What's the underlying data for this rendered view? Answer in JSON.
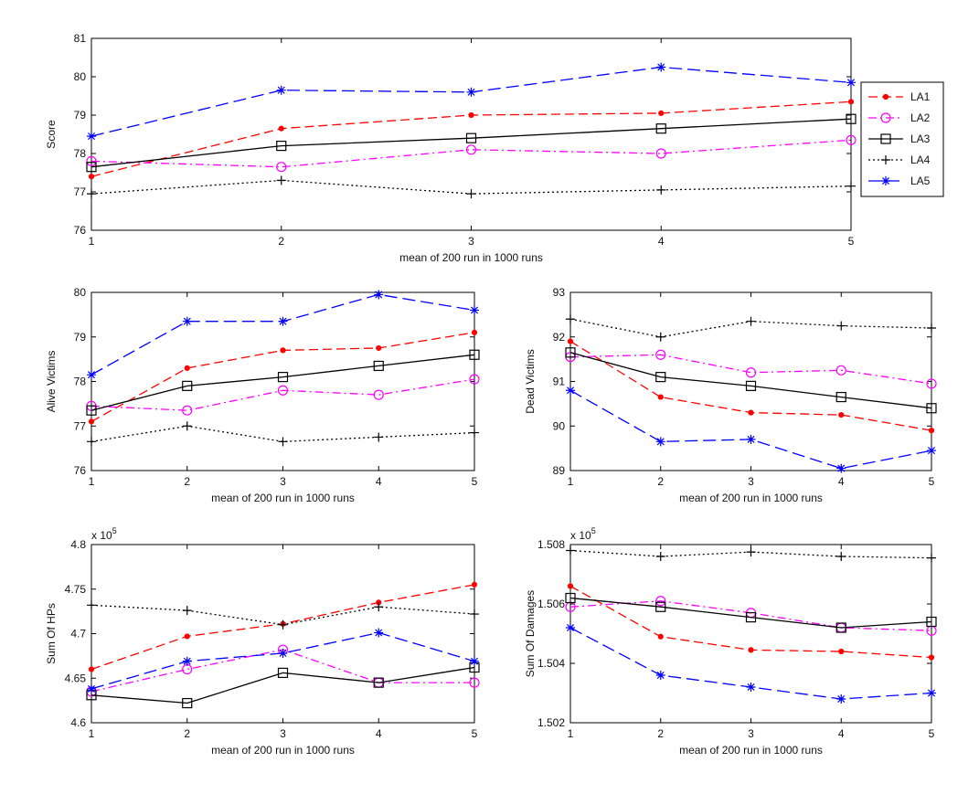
{
  "series_styles": [
    {
      "name": "LA1",
      "color": "#ff0000",
      "dash": "10,5",
      "marker": "dot"
    },
    {
      "name": "LA2",
      "color": "#ff00ff",
      "dash": "9,4,2,4",
      "marker": "circle"
    },
    {
      "name": "LA3",
      "color": "#000000",
      "dash": "",
      "marker": "square"
    },
    {
      "name": "LA4",
      "color": "#000000",
      "dash": "2,3",
      "marker": "plus"
    },
    {
      "name": "LA5",
      "color": "#0000ff",
      "dash": "14,6",
      "marker": "star"
    }
  ],
  "chart_data": [
    {
      "id": "score",
      "type": "line",
      "ylabel": "Score",
      "xlabel": "mean of 200 run in 1000 runs",
      "x": [
        1,
        2,
        3,
        4,
        5
      ],
      "xlim": [
        1,
        5
      ],
      "ylim": [
        76,
        81
      ],
      "xticks": [
        1,
        2,
        3,
        4,
        5
      ],
      "yticks": [
        76,
        77,
        78,
        79,
        80,
        81
      ],
      "ytick_labels": [
        "76",
        "77",
        "78",
        "79",
        "80",
        "81"
      ],
      "legend": "right-outside",
      "series": [
        {
          "name": "LA1",
          "values": [
            77.4,
            78.65,
            79.0,
            79.05,
            79.35
          ]
        },
        {
          "name": "LA2",
          "values": [
            77.8,
            77.65,
            78.1,
            78.0,
            78.35
          ]
        },
        {
          "name": "LA3",
          "values": [
            77.65,
            78.2,
            78.4,
            78.65,
            78.9
          ]
        },
        {
          "name": "LA4",
          "values": [
            76.95,
            77.3,
            76.95,
            77.05,
            77.15
          ]
        },
        {
          "name": "LA5",
          "values": [
            78.45,
            79.65,
            79.6,
            80.25,
            79.85
          ]
        }
      ]
    },
    {
      "id": "alive",
      "type": "line",
      "ylabel": "Alive Victims",
      "xlabel": "mean of 200 run in 1000 runs",
      "x": [
        1,
        2,
        3,
        4,
        5
      ],
      "xlim": [
        1,
        5
      ],
      "ylim": [
        76,
        80
      ],
      "xticks": [
        1,
        2,
        3,
        4,
        5
      ],
      "yticks": [
        76,
        77,
        78,
        79,
        80
      ],
      "ytick_labels": [
        "76",
        "77",
        "78",
        "79",
        "80"
      ],
      "series": [
        {
          "name": "LA1",
          "values": [
            77.1,
            78.3,
            78.7,
            78.75,
            79.1
          ]
        },
        {
          "name": "LA2",
          "values": [
            77.45,
            77.35,
            77.8,
            77.7,
            78.05
          ]
        },
        {
          "name": "LA3",
          "values": [
            77.35,
            77.9,
            78.1,
            78.35,
            78.6
          ]
        },
        {
          "name": "LA4",
          "values": [
            76.65,
            77.0,
            76.65,
            76.75,
            76.85
          ]
        },
        {
          "name": "LA5",
          "values": [
            78.15,
            79.35,
            79.35,
            79.95,
            79.6
          ]
        }
      ]
    },
    {
      "id": "dead",
      "type": "line",
      "ylabel": "Dead Victims",
      "xlabel": "mean of 200 run in 1000 runs",
      "x": [
        1,
        2,
        3,
        4,
        5
      ],
      "xlim": [
        1,
        5
      ],
      "ylim": [
        89,
        93
      ],
      "xticks": [
        1,
        2,
        3,
        4,
        5
      ],
      "yticks": [
        89,
        90,
        91,
        92,
        93
      ],
      "ytick_labels": [
        "89",
        "90",
        "91",
        "92",
        "93"
      ],
      "series": [
        {
          "name": "LA1",
          "values": [
            91.9,
            90.65,
            90.3,
            90.25,
            89.9
          ]
        },
        {
          "name": "LA2",
          "values": [
            91.55,
            91.6,
            91.2,
            91.25,
            90.95
          ]
        },
        {
          "name": "LA3",
          "values": [
            91.65,
            91.1,
            90.9,
            90.65,
            90.4
          ]
        },
        {
          "name": "LA4",
          "values": [
            92.4,
            92.0,
            92.35,
            92.25,
            92.2
          ]
        },
        {
          "name": "LA5",
          "values": [
            90.8,
            89.65,
            89.7,
            89.05,
            89.45
          ]
        }
      ]
    },
    {
      "id": "hps",
      "type": "line",
      "ylabel": "Sum Of HPs",
      "xlabel": "mean of 200 run in 1000 runs",
      "x": [
        1,
        2,
        3,
        4,
        5
      ],
      "xlim": [
        1,
        5
      ],
      "ylim": [
        4.6,
        4.8
      ],
      "xticks": [
        1,
        2,
        3,
        4,
        5
      ],
      "yticks": [
        4.6,
        4.65,
        4.7,
        4.75,
        4.8
      ],
      "ytick_labels": [
        "4.6",
        "4.65",
        "4.7",
        "4.75",
        "4.8"
      ],
      "multiplier": "x 10",
      "multiplier_exp": "5",
      "series": [
        {
          "name": "LA1",
          "values": [
            4.66,
            4.697,
            4.711,
            4.735,
            4.755
          ]
        },
        {
          "name": "LA2",
          "values": [
            4.635,
            4.66,
            4.682,
            4.645,
            4.645
          ]
        },
        {
          "name": "LA3",
          "values": [
            4.631,
            4.622,
            4.656,
            4.645,
            4.662
          ]
        },
        {
          "name": "LA4",
          "values": [
            4.732,
            4.726,
            4.71,
            4.73,
            4.722
          ]
        },
        {
          "name": "LA5",
          "values": [
            4.638,
            4.669,
            4.678,
            4.701,
            4.669
          ]
        }
      ]
    },
    {
      "id": "damages",
      "type": "line",
      "ylabel": "Sum Of Damages",
      "xlabel": "mean of 200 run in 1000 runs",
      "x": [
        1,
        2,
        3,
        4,
        5
      ],
      "xlim": [
        1,
        5
      ],
      "ylim": [
        1.502,
        1.508
      ],
      "xticks": [
        1,
        2,
        3,
        4,
        5
      ],
      "yticks": [
        1.502,
        1.504,
        1.506,
        1.508
      ],
      "ytick_labels": [
        "1.502",
        "1.504",
        "1.506",
        "1.508"
      ],
      "multiplier": "x 10",
      "multiplier_exp": "5",
      "series": [
        {
          "name": "LA1",
          "values": [
            1.5066,
            1.5049,
            1.50445,
            1.5044,
            1.5042
          ]
        },
        {
          "name": "LA2",
          "values": [
            1.5059,
            1.5061,
            1.5057,
            1.5052,
            1.5051
          ]
        },
        {
          "name": "LA3",
          "values": [
            1.5062,
            1.5059,
            1.50555,
            1.5052,
            1.5054
          ]
        },
        {
          "name": "LA4",
          "values": [
            1.5078,
            1.5076,
            1.50775,
            1.5076,
            1.50755
          ]
        },
        {
          "name": "LA5",
          "values": [
            1.5052,
            1.5036,
            1.5032,
            1.5028,
            1.503
          ]
        }
      ]
    }
  ]
}
